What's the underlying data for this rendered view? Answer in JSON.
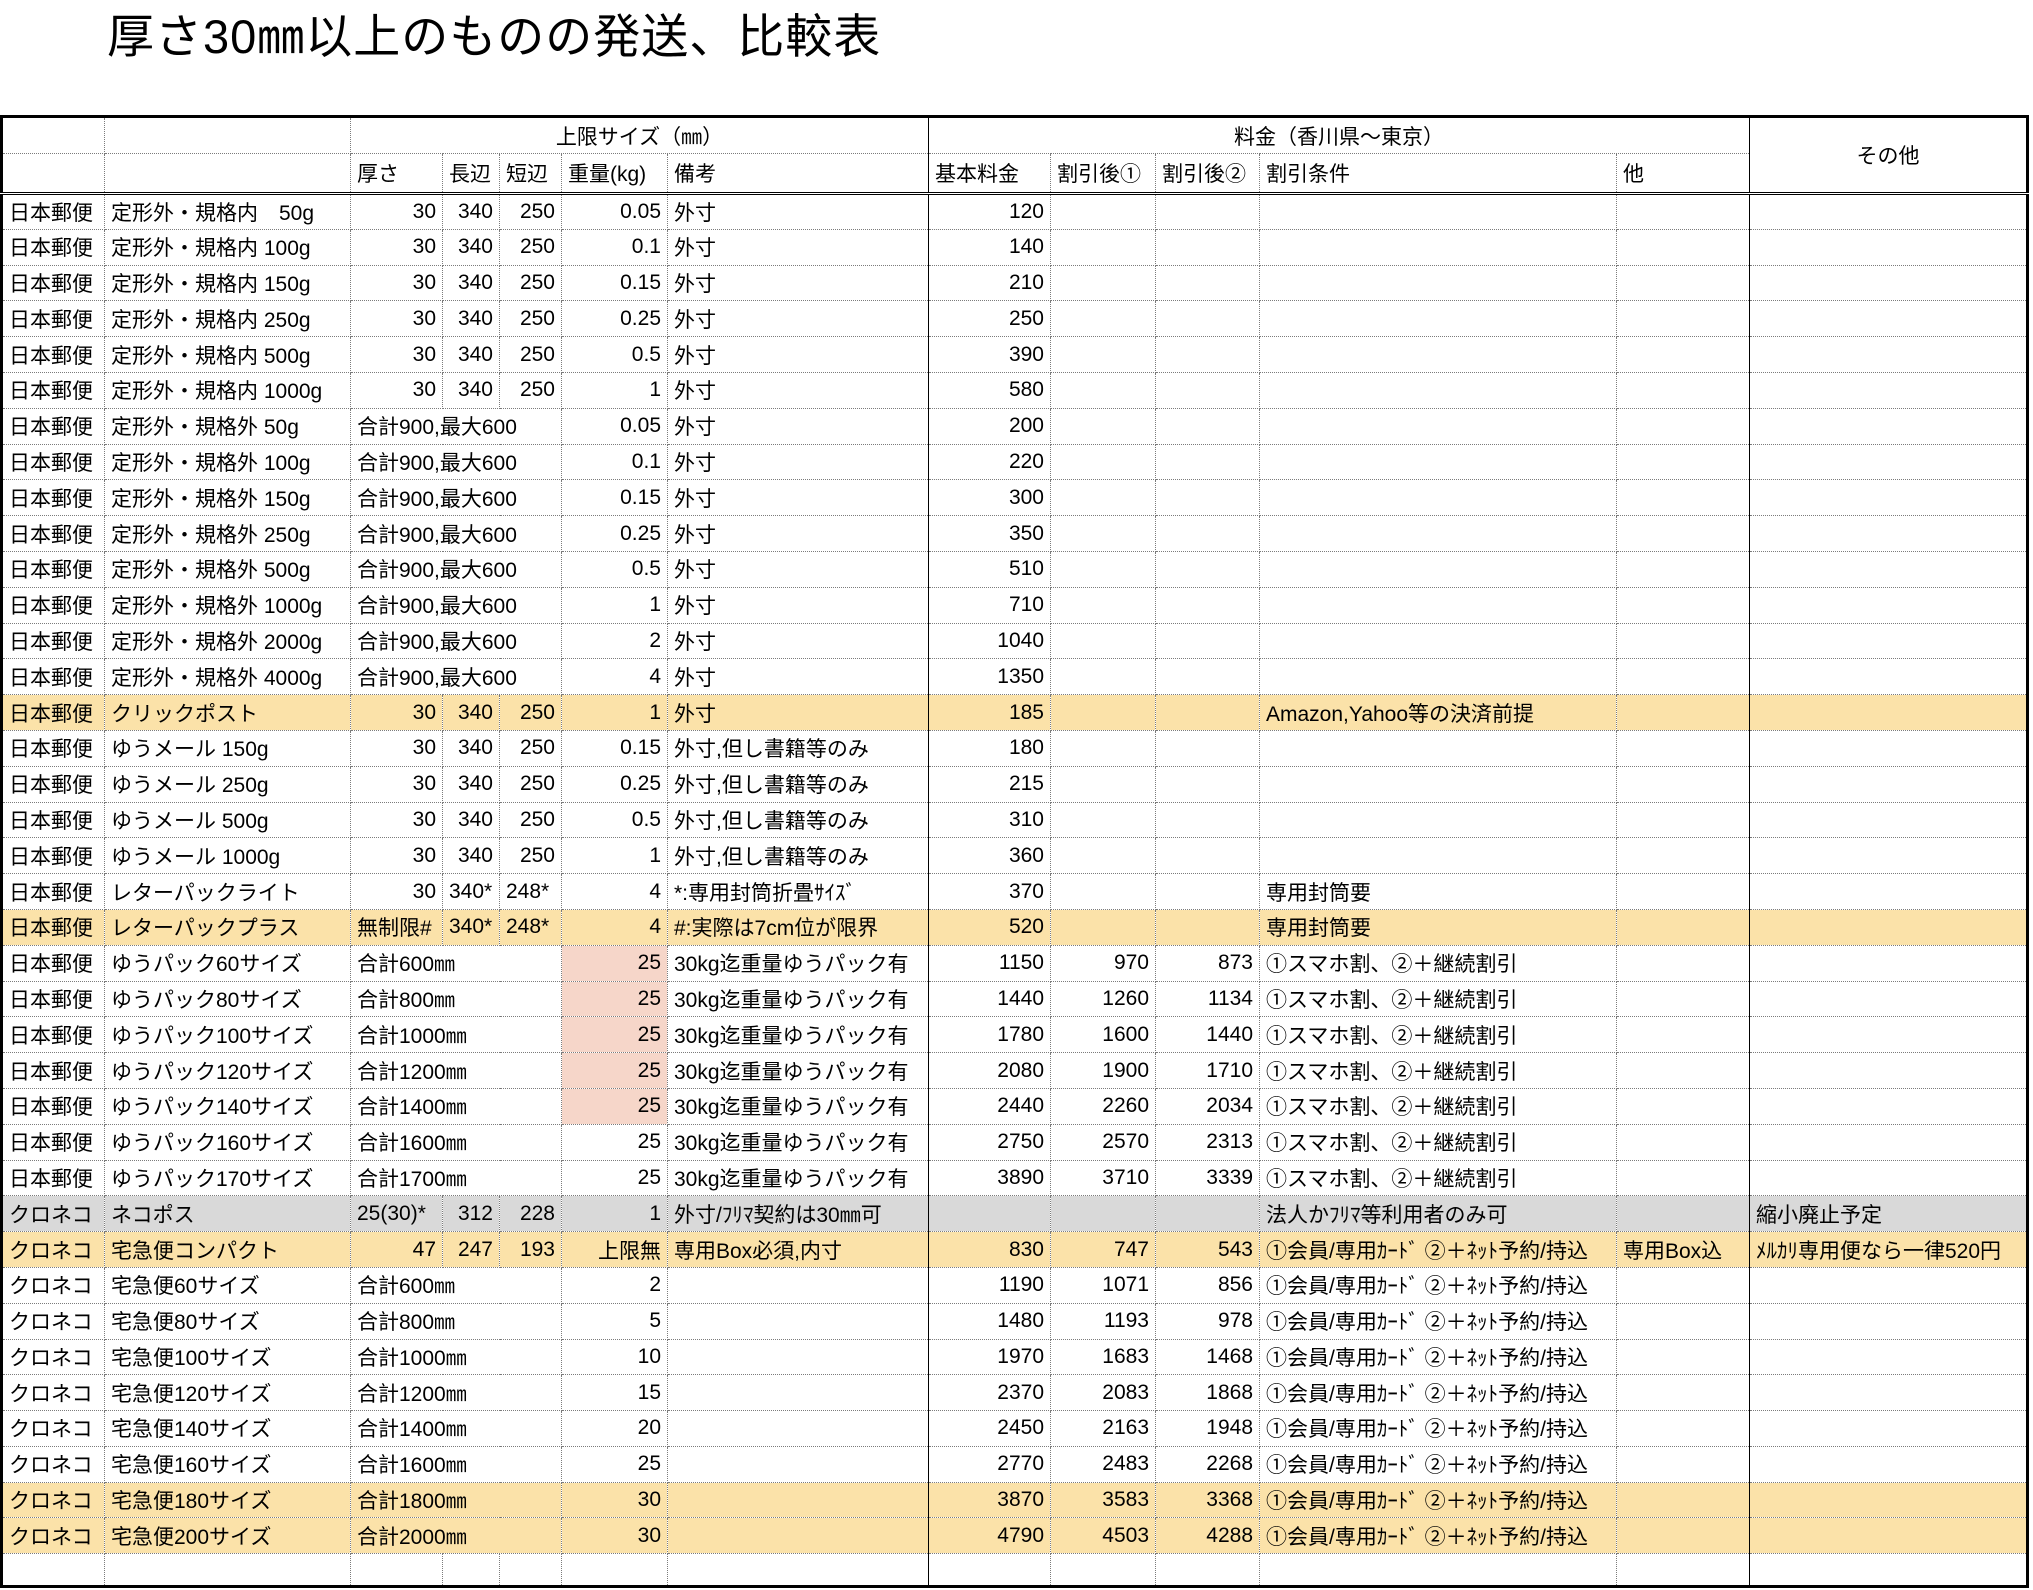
{
  "title": "厚さ30㎜以上のものの発送、比較表",
  "colors": {
    "row_highlight_yellow": "#FBE2A9",
    "cell_highlight_pink": "#F6D6C9",
    "row_highlight_gray": "#D9D9D9",
    "grid_hairline": "#7b7b7b",
    "border": "#000000"
  },
  "table": {
    "group_headers": {
      "size": "上限サイズ（㎜）",
      "fee": "料金（香川県～東京）",
      "other": "その他"
    },
    "column_headers": {
      "thickness": "厚さ",
      "long": "長辺",
      "short": "短辺",
      "weight": "重量(kg)",
      "note": "備考",
      "base": "基本料金",
      "disc1": "割引後①",
      "disc2": "割引後②",
      "cond": "割引条件",
      "etc": "他"
    },
    "rows": [
      {
        "c": "日本郵便",
        "i": "定形外・規格内　50g",
        "t": "30",
        "l": "340",
        "s": "250",
        "w": "0.05",
        "n": "外寸",
        "b": "120"
      },
      {
        "c": "日本郵便",
        "i": "定形外・規格内 100g",
        "t": "30",
        "l": "340",
        "s": "250",
        "w": "0.1",
        "n": "外寸",
        "b": "140"
      },
      {
        "c": "日本郵便",
        "i": "定形外・規格内 150g",
        "t": "30",
        "l": "340",
        "s": "250",
        "w": "0.15",
        "n": "外寸",
        "b": "210"
      },
      {
        "c": "日本郵便",
        "i": "定形外・規格内 250g",
        "t": "30",
        "l": "340",
        "s": "250",
        "w": "0.25",
        "n": "外寸",
        "b": "250"
      },
      {
        "c": "日本郵便",
        "i": "定形外・規格内 500g",
        "t": "30",
        "l": "340",
        "s": "250",
        "w": "0.5",
        "n": "外寸",
        "b": "390"
      },
      {
        "c": "日本郵便",
        "i": "定形外・規格内 1000g",
        "t": "30",
        "l": "340",
        "s": "250",
        "w": "1",
        "n": "外寸",
        "b": "580"
      },
      {
        "c": "日本郵便",
        "i": "定形外・規格外 50g",
        "span": "合計900,最大600",
        "w": "0.05",
        "n": "外寸",
        "b": "200"
      },
      {
        "c": "日本郵便",
        "i": "定形外・規格外 100g",
        "span": "合計900,最大600",
        "w": "0.1",
        "n": "外寸",
        "b": "220"
      },
      {
        "c": "日本郵便",
        "i": "定形外・規格外 150g",
        "span": "合計900,最大600",
        "w": "0.15",
        "n": "外寸",
        "b": "300"
      },
      {
        "c": "日本郵便",
        "i": "定形外・規格外 250g",
        "span": "合計900,最大600",
        "w": "0.25",
        "n": "外寸",
        "b": "350"
      },
      {
        "c": "日本郵便",
        "i": "定形外・規格外 500g",
        "span": "合計900,最大600",
        "w": "0.5",
        "n": "外寸",
        "b": "510"
      },
      {
        "c": "日本郵便",
        "i": "定形外・規格外 1000g",
        "span": "合計900,最大600",
        "w": "1",
        "n": "外寸",
        "b": "710"
      },
      {
        "c": "日本郵便",
        "i": "定形外・規格外 2000g",
        "span": "合計900,最大600",
        "w": "2",
        "n": "外寸",
        "b": "1040"
      },
      {
        "c": "日本郵便",
        "i": "定形外・規格外 4000g",
        "span": "合計900,最大600",
        "w": "4",
        "n": "外寸",
        "b": "1350"
      },
      {
        "c": "日本郵便",
        "i": "クリックポスト",
        "t": "30",
        "l": "340",
        "s": "250",
        "w": "1",
        "n": "外寸",
        "b": "185",
        "q": "Amazon,Yahoo等の決済前提",
        "bg": "y",
        "pink": [
          "b"
        ]
      },
      {
        "c": "日本郵便",
        "i": "ゆうメール 150g",
        "t": "30",
        "l": "340",
        "s": "250",
        "w": "0.15",
        "n": "外寸,但し書籍等のみ",
        "b": "180"
      },
      {
        "c": "日本郵便",
        "i": "ゆうメール 250g",
        "t": "30",
        "l": "340",
        "s": "250",
        "w": "0.25",
        "n": "外寸,但し書籍等のみ",
        "b": "215"
      },
      {
        "c": "日本郵便",
        "i": "ゆうメール 500g",
        "t": "30",
        "l": "340",
        "s": "250",
        "w": "0.5",
        "n": "外寸,但し書籍等のみ",
        "b": "310"
      },
      {
        "c": "日本郵便",
        "i": "ゆうメール 1000g",
        "t": "30",
        "l": "340",
        "s": "250",
        "w": "1",
        "n": "外寸,但し書籍等のみ",
        "b": "360"
      },
      {
        "c": "日本郵便",
        "i": "レターパックライト",
        "t": "30",
        "l": "340*",
        "s": "248*",
        "w": "4",
        "n": "*:専用封筒折畳ｻｲｽﾞ",
        "b": "370",
        "q": "専用封筒要"
      },
      {
        "c": "日本郵便",
        "i": "レターパックプラス",
        "t": "無制限#",
        "l": "340*",
        "s": "248*",
        "w": "4",
        "n": "#:実際は7cm位が限界",
        "b": "520",
        "q": "専用封筒要",
        "bg": "y"
      },
      {
        "c": "日本郵便",
        "i": "ゆうパック60サイズ",
        "span": "合計600㎜",
        "w": "25",
        "n": "30kg迄重量ゆうパック有",
        "b": "1150",
        "d1": "970",
        "d2": "873",
        "q": "①スマホ割、②＋継続割引",
        "pink": [
          "w"
        ]
      },
      {
        "c": "日本郵便",
        "i": "ゆうパック80サイズ",
        "span": "合計800㎜",
        "w": "25",
        "n": "30kg迄重量ゆうパック有",
        "b": "1440",
        "d1": "1260",
        "d2": "1134",
        "q": "①スマホ割、②＋継続割引",
        "pink": [
          "w"
        ]
      },
      {
        "c": "日本郵便",
        "i": "ゆうパック100サイズ",
        "span": "合計1000㎜",
        "w": "25",
        "n": "30kg迄重量ゆうパック有",
        "b": "1780",
        "d1": "1600",
        "d2": "1440",
        "q": "①スマホ割、②＋継続割引",
        "pink": [
          "w"
        ]
      },
      {
        "c": "日本郵便",
        "i": "ゆうパック120サイズ",
        "span": "合計1200㎜",
        "w": "25",
        "n": "30kg迄重量ゆうパック有",
        "b": "2080",
        "d1": "1900",
        "d2": "1710",
        "q": "①スマホ割、②＋継続割引",
        "pink": [
          "w"
        ]
      },
      {
        "c": "日本郵便",
        "i": "ゆうパック140サイズ",
        "span": "合計1400㎜",
        "w": "25",
        "n": "30kg迄重量ゆうパック有",
        "b": "2440",
        "d1": "2260",
        "d2": "2034",
        "q": "①スマホ割、②＋継続割引",
        "pink": [
          "w"
        ]
      },
      {
        "c": "日本郵便",
        "i": "ゆうパック160サイズ",
        "span": "合計1600㎜",
        "w": "25",
        "n": "30kg迄重量ゆうパック有",
        "b": "2750",
        "d1": "2570",
        "d2": "2313",
        "q": "①スマホ割、②＋継続割引"
      },
      {
        "c": "日本郵便",
        "i": "ゆうパック170サイズ",
        "span": "合計1700㎜",
        "w": "25",
        "n": "30kg迄重量ゆうパック有",
        "b": "3890",
        "d1": "3710",
        "d2": "3339",
        "q": "①スマホ割、②＋継続割引"
      },
      {
        "c": "クロネコ",
        "i": "ネコポス",
        "t": "25(30)*",
        "l": "312",
        "s": "228",
        "w": "1",
        "n": "外寸/ﾌﾘﾏ契約は30㎜可",
        "q": "法人かﾌﾘﾏ等利用者のみ可",
        "o": "縮小廃止予定",
        "bg": "g"
      },
      {
        "c": "クロネコ",
        "i": "宅急便コンパクト",
        "t": "47",
        "l": "247",
        "s": "193",
        "w": "上限無",
        "n": "専用Box必須,内寸",
        "b": "830",
        "d1": "747",
        "d2": "543",
        "q": "①会員/専用ｶｰﾄﾞ ②＋ﾈｯﾄ予約/持込",
        "e": "専用Box込",
        "o": "ﾒﾙｶﾘ専用便なら一律520円",
        "bg": "y",
        "pink": [
          "t",
          "w"
        ]
      },
      {
        "c": "クロネコ",
        "i": "宅急便60サイズ",
        "span": "合計600㎜",
        "w": "2",
        "b": "1190",
        "d1": "1071",
        "d2": "856",
        "q": "①会員/専用ｶｰﾄﾞ ②＋ﾈｯﾄ予約/持込"
      },
      {
        "c": "クロネコ",
        "i": "宅急便80サイズ",
        "span": "合計800㎜",
        "w": "5",
        "b": "1480",
        "d1": "1193",
        "d2": "978",
        "q": "①会員/専用ｶｰﾄﾞ ②＋ﾈｯﾄ予約/持込"
      },
      {
        "c": "クロネコ",
        "i": "宅急便100サイズ",
        "span": "合計1000㎜",
        "w": "10",
        "b": "1970",
        "d1": "1683",
        "d2": "1468",
        "q": "①会員/専用ｶｰﾄﾞ ②＋ﾈｯﾄ予約/持込"
      },
      {
        "c": "クロネコ",
        "i": "宅急便120サイズ",
        "span": "合計1200㎜",
        "w": "15",
        "b": "2370",
        "d1": "2083",
        "d2": "1868",
        "q": "①会員/専用ｶｰﾄﾞ ②＋ﾈｯﾄ予約/持込"
      },
      {
        "c": "クロネコ",
        "i": "宅急便140サイズ",
        "span": "合計1400㎜",
        "w": "20",
        "b": "2450",
        "d1": "2163",
        "d2": "1948",
        "q": "①会員/専用ｶｰﾄﾞ ②＋ﾈｯﾄ予約/持込"
      },
      {
        "c": "クロネコ",
        "i": "宅急便160サイズ",
        "span": "合計1600㎜",
        "w": "25",
        "b": "2770",
        "d1": "2483",
        "d2": "2268",
        "q": "①会員/専用ｶｰﾄﾞ ②＋ﾈｯﾄ予約/持込"
      },
      {
        "c": "クロネコ",
        "i": "宅急便180サイズ",
        "span": "合計1800㎜",
        "w": "30",
        "b": "3870",
        "d1": "3583",
        "d2": "3368",
        "q": "①会員/専用ｶｰﾄﾞ ②＋ﾈｯﾄ予約/持込",
        "bg": "y",
        "pink": [
          "w"
        ]
      },
      {
        "c": "クロネコ",
        "i": "宅急便200サイズ",
        "span": "合計2000㎜",
        "w": "30",
        "b": "4790",
        "d1": "4503",
        "d2": "4288",
        "q": "①会員/専用ｶｰﾄﾞ ②＋ﾈｯﾄ予約/持込",
        "bg": "y",
        "pink": [
          "w"
        ]
      }
    ]
  }
}
